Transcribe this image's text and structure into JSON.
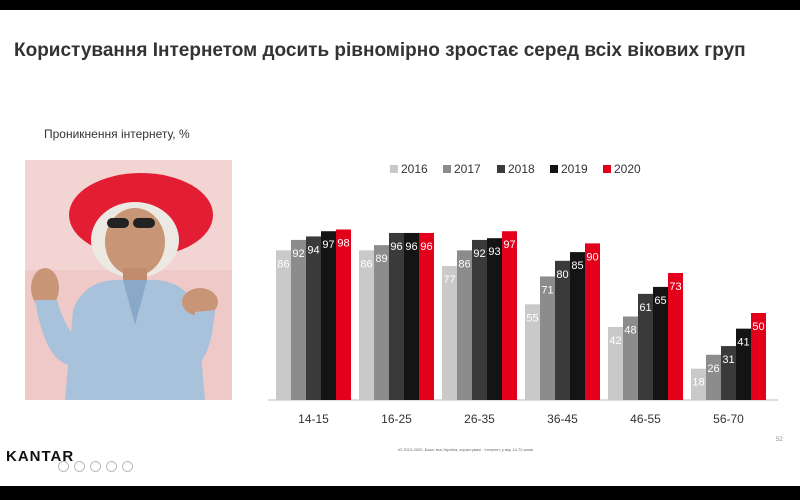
{
  "title": "Користування Інтернетом досить рівномірно зростає серед всіх вікових груп",
  "subtitle": "Проникнення інтернету, %",
  "logo": "KANTAR",
  "source": "IG 2013-2020. База: вся Україна, користувачі . Інтернет, у віці 14-70 років",
  "page_number": "52",
  "colors": {
    "2016": "#c9c9c9",
    "2017": "#8c8c8c",
    "2018": "#3a3a3a",
    "2019": "#141414",
    "2020": "#e3001b"
  },
  "chart_data": {
    "type": "bar",
    "title": "",
    "xlabel": "",
    "ylabel": "",
    "ylim": [
      0,
      100
    ],
    "grid": false,
    "legend": "top-right",
    "categories": [
      "14-15",
      "16-25",
      "26-35",
      "36-45",
      "46-55",
      "56-70"
    ],
    "series": [
      {
        "name": "2016",
        "values": [
          86,
          86,
          77,
          55,
          42,
          18
        ]
      },
      {
        "name": "2017",
        "values": [
          92,
          89,
          86,
          71,
          48,
          26
        ]
      },
      {
        "name": "2018",
        "values": [
          94,
          96,
          92,
          80,
          61,
          31
        ]
      },
      {
        "name": "2019",
        "values": [
          97,
          96,
          93,
          85,
          65,
          41
        ]
      },
      {
        "name": "2020",
        "values": [
          98,
          96,
          97,
          90,
          73,
          50
        ]
      }
    ]
  }
}
